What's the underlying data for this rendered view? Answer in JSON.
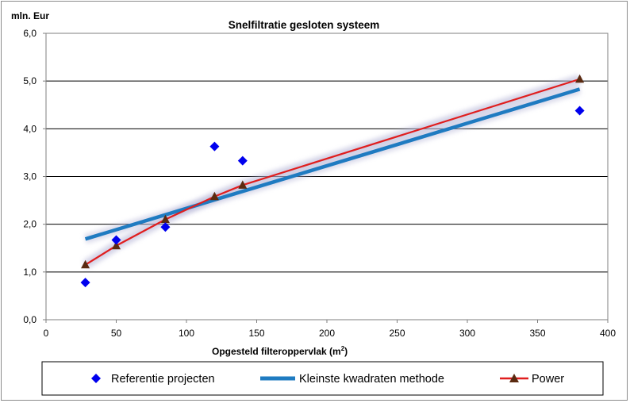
{
  "chart_data": {
    "type": "scatter",
    "title": "Snelfiltratie  gesloten  systeem",
    "ylabel": "mln. Eur",
    "xlabel": "Opgesteld filteroppervlak (m",
    "xlabel_sup": "2",
    "xlabel_end": ")",
    "xlim": [
      0,
      400
    ],
    "ylim": [
      0,
      6
    ],
    "x_ticks": [
      "0",
      "50",
      "100",
      "150",
      "200",
      "250",
      "300",
      "350",
      "400"
    ],
    "y_ticks": [
      "0,0",
      "1,0",
      "2,0",
      "3,0",
      "4,0",
      "5,0",
      "6,0"
    ],
    "grid": "horizontal",
    "legend_position": "bottom",
    "series": [
      {
        "name": "Referentie projecten",
        "kind": "scatter",
        "marker": "diamond",
        "color": "#0000ee",
        "x": [
          28,
          50,
          85,
          120,
          140,
          380
        ],
        "y": [
          0.78,
          1.67,
          1.94,
          3.63,
          3.33,
          4.38
        ]
      },
      {
        "name": "Kleinste kwadraten methode",
        "kind": "line",
        "color": "#1f7bc1",
        "x": [
          28,
          380
        ],
        "y": [
          1.69,
          4.83
        ]
      },
      {
        "name": "Power",
        "kind": "line-markers",
        "marker": "triangle",
        "color": "#e01e1e",
        "marker_color": "#5a2a10",
        "x": [
          28,
          50,
          85,
          120,
          140,
          380
        ],
        "y": [
          1.15,
          1.55,
          2.1,
          2.58,
          2.82,
          5.04
        ]
      }
    ]
  }
}
